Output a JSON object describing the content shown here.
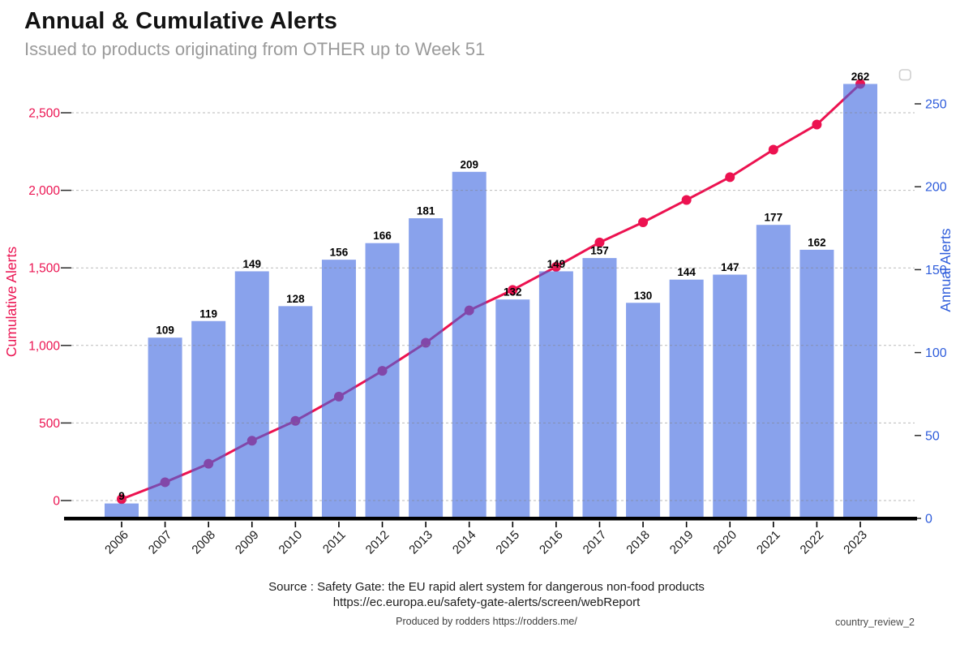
{
  "header": {
    "title": "Annual & Cumulative Alerts",
    "subtitle": "Issued to products originating from OTHER up to Week 51"
  },
  "chart_data": {
    "type": "combo-bar-line",
    "title": "Annual & Cumulative Alerts",
    "subtitle": "Issued to products originating from OTHER up to Week 51",
    "categories": [
      "2006",
      "2007",
      "2008",
      "2009",
      "2010",
      "2011",
      "2012",
      "2013",
      "2014",
      "2015",
      "2016",
      "2017",
      "2018",
      "2019",
      "2020",
      "2021",
      "2022",
      "2023"
    ],
    "series": [
      {
        "name": "Annual Alerts",
        "type": "bar",
        "yaxis": "right",
        "color": "#4169e1",
        "opacity": 0.62,
        "values": [
          9,
          109,
          119,
          149,
          128,
          156,
          166,
          181,
          209,
          132,
          149,
          157,
          130,
          144,
          147,
          177,
          162,
          262
        ]
      },
      {
        "name": "Cumulative Alerts",
        "type": "line",
        "yaxis": "left",
        "color": "#ec1250",
        "marker": "circle",
        "values": [
          9,
          118,
          237,
          386,
          514,
          670,
          836,
          1017,
          1226,
          1358,
          1507,
          1664,
          1794,
          1938,
          2085,
          2262,
          2424,
          2686
        ]
      }
    ],
    "axes": {
      "left": {
        "label": "Cumulative Alerts",
        "color": "#eb1351",
        "ticks": [
          0,
          500,
          1000,
          1500,
          2000,
          2500
        ],
        "tick_labels": [
          "0",
          "500",
          "1,000",
          "1,500",
          "2,000",
          "2,500"
        ]
      },
      "right": {
        "label": "Annual Alerts",
        "color": "#2e5cdb",
        "ticks": [
          0,
          50,
          100,
          150,
          200,
          250
        ],
        "tick_labels": [
          "0",
          "50",
          "100",
          "150",
          "200",
          "250"
        ]
      }
    },
    "grid": {
      "horizontal": true,
      "style": "dashed",
      "color": "#828282"
    },
    "bar_labels": true,
    "legend": {
      "visible": true,
      "empty": true,
      "position": "top-right"
    }
  },
  "footer": {
    "source_line1": "Source : Safety Gate: the EU rapid alert system for dangerous non-food products",
    "source_line2": "https://ec.europa.eu/safety-gate-alerts/screen/webReport",
    "produced_by": "Produced by rodders https://rodders.me/",
    "document_reference": "country_review_2"
  }
}
